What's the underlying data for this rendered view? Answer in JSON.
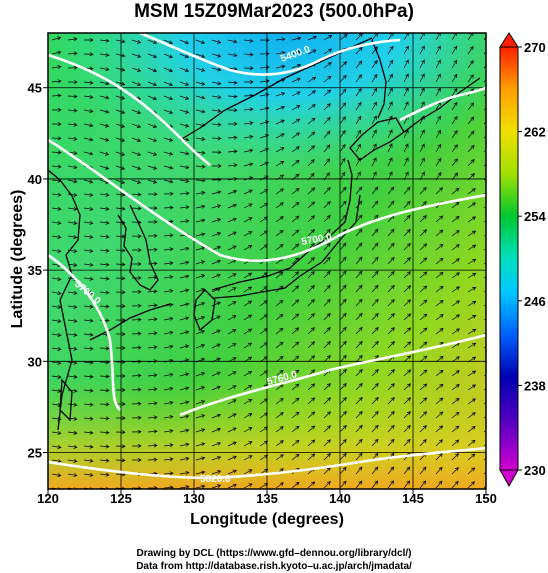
{
  "map": {
    "title": "MSM 15Z09Mar2023 (500.0hPa)",
    "xlabel": "Longitude (degrees)",
    "ylabel": "Latitude  (degrees)",
    "lon_range": [
      120,
      150
    ],
    "lat_range": [
      23,
      48
    ],
    "lon_ticks": [
      "120",
      "125",
      "130",
      "135",
      "140",
      "145",
      "150"
    ],
    "lat_ticks": [
      "25",
      "30",
      "35",
      "40",
      "45"
    ],
    "grid": true,
    "colorbar": {
      "ticks": [
        "230",
        "238",
        "246",
        "254",
        "262",
        "270"
      ],
      "range": [
        230,
        270
      ],
      "colors": [
        "#d000d0",
        "#0000b0",
        "#0060ff",
        "#00d8ff",
        "#00e0a0",
        "#00c830",
        "#a0e000",
        "#f0e000",
        "#ffa000",
        "#ff2000"
      ]
    },
    "contour_labels": [
      "5400.0",
      "5700.0",
      "5700.0",
      "5760.0",
      "5820.0",
      "5580.0"
    ],
    "credit_line1": "Drawing by DCL (https://www.gfd–dennou.org/library/dcl/)",
    "credit_line2": "Data from http://database.rish.kyoto–u.ac.jp/arch/jmadata/"
  }
}
